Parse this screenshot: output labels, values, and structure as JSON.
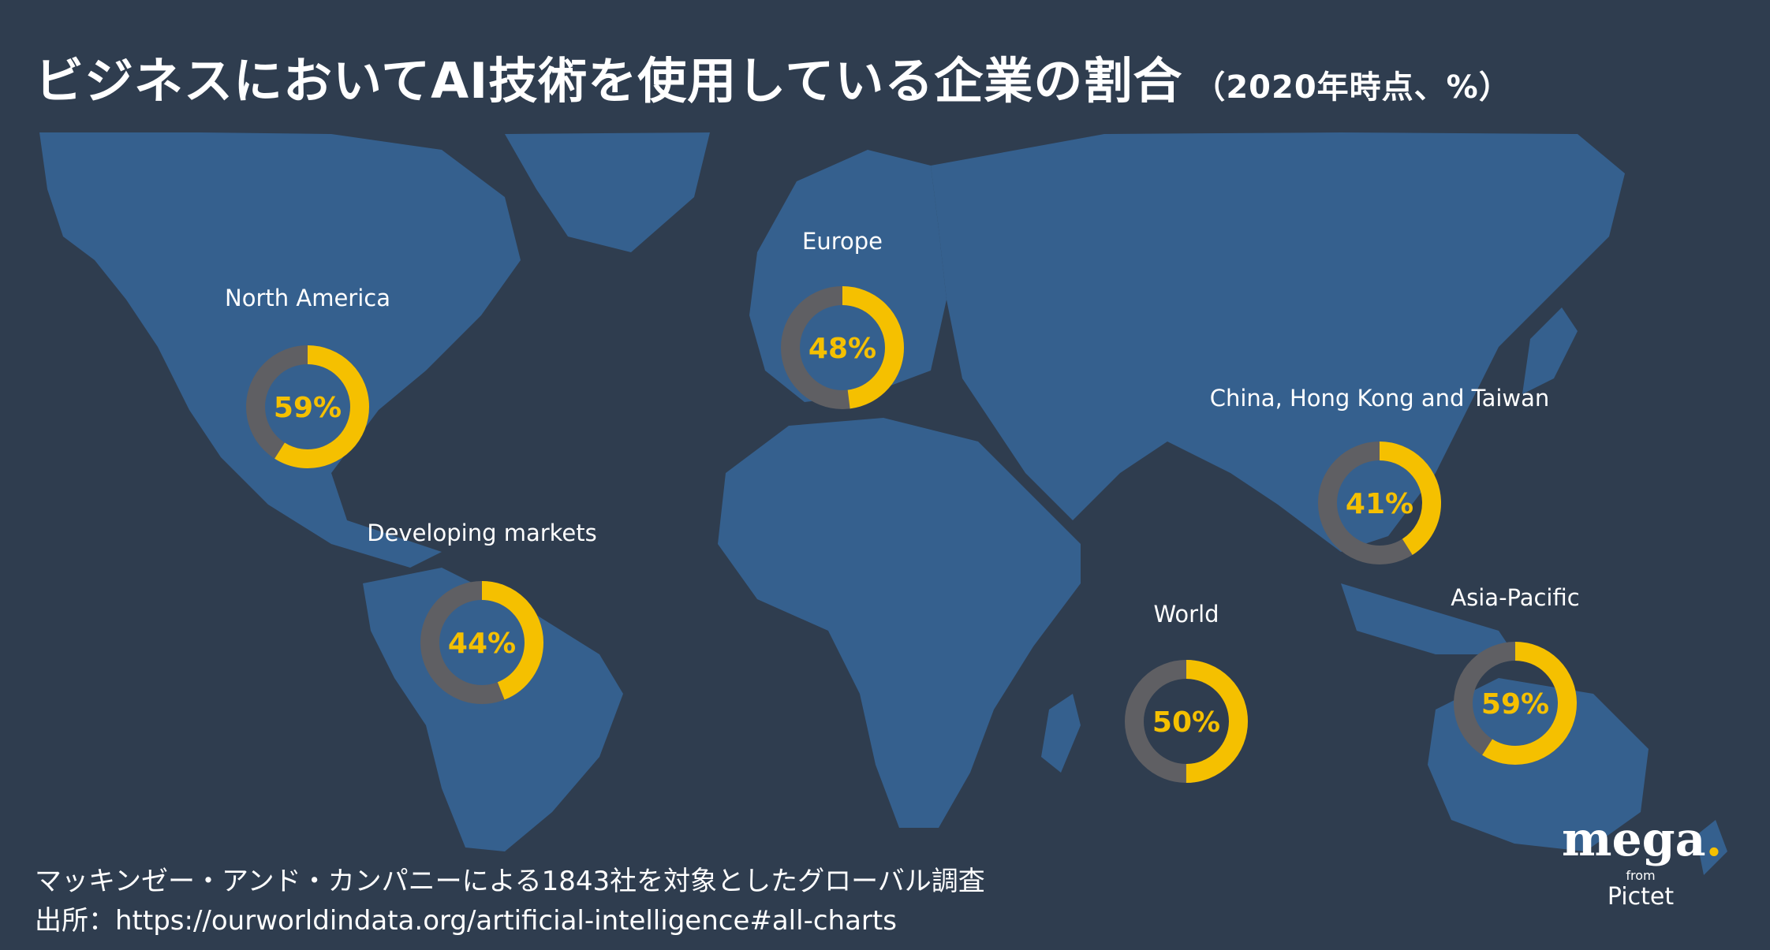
{
  "title": "ビジネスにおいてAI技術を使用している企業の割合",
  "title_note": "（2020年時点、%）",
  "colors": {
    "background": "#2f3d4f",
    "land": "#35608e",
    "ring_track": "#5f5f63",
    "ring_value": "#f5c000",
    "value_text": "#f5c000"
  },
  "chart_data": {
    "type": "donut",
    "title": "ビジネスにおいてAI技術を使用している企業の割合",
    "subtitle": "（2020年時点、%）",
    "unit": "%",
    "categories": [
      "North America",
      "Europe",
      "China, Hong Kong and Taiwan",
      "Developing markets",
      "World",
      "Asia-Pacific"
    ],
    "values": [
      59,
      48,
      41,
      44,
      50,
      59
    ],
    "value_labels": [
      "59%",
      "48%",
      "41%",
      "44%",
      "50%",
      "59%"
    ]
  },
  "footer": {
    "note": "マッキンゼー・アンド・カンパニーによる1843社を対象としたグローバル調査",
    "source": "出所：https://ourworldindata.org/artificial-intelligence#all-charts"
  },
  "logo": {
    "brand": "mega",
    "from": "from",
    "company": "Pictet"
  }
}
